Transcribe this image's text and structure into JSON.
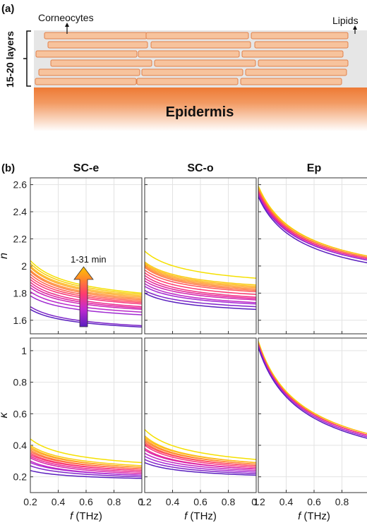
{
  "panel_a": {
    "label": "(a)",
    "corneocytes_label": "Corneocytes",
    "lipids_label": "Lipids",
    "layers_label": "15-20 layers",
    "epidermis_label": "Epidermis"
  },
  "panel_b": {
    "label": "(b)",
    "arrow_label": "1-31 min"
  },
  "colors": {
    "corneocyte_fill": "#f7c39d",
    "corneocyte_stroke": "#e0804a",
    "lipid_bg": "#e6e6e6",
    "epidermis_top": "#ee7a35",
    "colormap": [
      "#5a1fbf",
      "#b12bd6",
      "#e01fa0",
      "#ff3a6e",
      "#ff7a3a",
      "#ffb020",
      "#f5e000"
    ]
  },
  "chart_data": [
    {
      "type": "line",
      "title": "SC-e",
      "ylabel": "n",
      "xlabel": "",
      "xlim": [
        0.2,
        1
      ],
      "ylim": [
        1.5,
        2.65
      ],
      "xticks": [
        "0.2",
        "0.4",
        "0.6",
        "0.8",
        "1"
      ],
      "yticks": [
        "1.6",
        "1.8",
        "2",
        "2.2",
        "2.4",
        "2.6"
      ],
      "grid": true,
      "curves": [
        {
          "start": 2.04,
          "end": 1.8
        },
        {
          "start": 2.02,
          "end": 1.79
        },
        {
          "start": 2.0,
          "end": 1.78
        },
        {
          "start": 1.99,
          "end": 1.77
        },
        {
          "start": 1.97,
          "end": 1.76
        },
        {
          "start": 1.96,
          "end": 1.75
        },
        {
          "start": 1.94,
          "end": 1.74
        },
        {
          "start": 1.92,
          "end": 1.73
        },
        {
          "start": 1.9,
          "end": 1.72
        },
        {
          "start": 1.88,
          "end": 1.7
        },
        {
          "start": 1.86,
          "end": 1.69
        },
        {
          "start": 1.84,
          "end": 1.68
        },
        {
          "start": 1.81,
          "end": 1.66
        },
        {
          "start": 1.78,
          "end": 1.64
        },
        {
          "start": 1.7,
          "end": 1.56
        },
        {
          "start": 1.68,
          "end": 1.55
        }
      ]
    },
    {
      "type": "line",
      "title": "SC-o",
      "ylabel": "",
      "xlabel": "",
      "xlim": [
        0.2,
        1
      ],
      "ylim": [
        1.5,
        2.65
      ],
      "xticks": [
        "0.2",
        "0.4",
        "0.6",
        "0.8",
        "1"
      ],
      "yticks": [
        "1.6",
        "1.8",
        "2",
        "2.2",
        "2.4",
        "2.6"
      ],
      "grid": true,
      "curves": [
        {
          "start": 2.11,
          "end": 1.91
        },
        {
          "start": 2.03,
          "end": 1.86
        },
        {
          "start": 2.02,
          "end": 1.85
        },
        {
          "start": 2.01,
          "end": 1.84
        },
        {
          "start": 2.0,
          "end": 1.83
        },
        {
          "start": 1.99,
          "end": 1.82
        },
        {
          "start": 1.97,
          "end": 1.81
        },
        {
          "start": 1.95,
          "end": 1.79
        },
        {
          "start": 1.93,
          "end": 1.77
        },
        {
          "start": 1.91,
          "end": 1.76
        },
        {
          "start": 1.89,
          "end": 1.75
        },
        {
          "start": 1.87,
          "end": 1.73
        },
        {
          "start": 1.85,
          "end": 1.72
        },
        {
          "start": 1.82,
          "end": 1.7
        },
        {
          "start": 1.8,
          "end": 1.68
        }
      ]
    },
    {
      "type": "line",
      "title": "Ep",
      "ylabel": "",
      "xlabel": "",
      "xlim": [
        0.2,
        1
      ],
      "ylim": [
        1.5,
        2.65
      ],
      "xticks": [
        "0.2",
        "0.4",
        "0.6",
        "0.8",
        "1"
      ],
      "yticks": [
        "1.6",
        "1.8",
        "2",
        "2.2",
        "2.4",
        "2.6"
      ],
      "grid": true,
      "curves": [
        {
          "start": 2.59,
          "end": 2.07
        },
        {
          "start": 2.58,
          "end": 2.07
        },
        {
          "start": 2.57,
          "end": 2.06
        },
        {
          "start": 2.56,
          "end": 2.06
        },
        {
          "start": 2.55,
          "end": 2.05
        },
        {
          "start": 2.54,
          "end": 2.05
        },
        {
          "start": 2.53,
          "end": 2.04
        },
        {
          "start": 2.52,
          "end": 2.04
        },
        {
          "start": 2.51,
          "end": 2.02
        }
      ]
    },
    {
      "type": "line",
      "title": "",
      "ylabel": "κ",
      "xlabel": "f (THz)",
      "xlim": [
        0.2,
        1
      ],
      "ylim": [
        0.1,
        1.08
      ],
      "xticks": [
        "0.2",
        "0.4",
        "0.6",
        "0.8",
        "1"
      ],
      "yticks": [
        "0.2",
        "0.4",
        "0.6",
        "0.8",
        "1"
      ],
      "grid": true,
      "curves": [
        {
          "start": 0.44,
          "end": 0.29
        },
        {
          "start": 0.4,
          "end": 0.27
        },
        {
          "start": 0.39,
          "end": 0.26
        },
        {
          "start": 0.38,
          "end": 0.26
        },
        {
          "start": 0.37,
          "end": 0.25
        },
        {
          "start": 0.36,
          "end": 0.25
        },
        {
          "start": 0.35,
          "end": 0.24
        },
        {
          "start": 0.34,
          "end": 0.24
        },
        {
          "start": 0.33,
          "end": 0.23
        },
        {
          "start": 0.32,
          "end": 0.22
        },
        {
          "start": 0.3,
          "end": 0.21
        },
        {
          "start": 0.29,
          "end": 0.21
        },
        {
          "start": 0.27,
          "end": 0.2
        },
        {
          "start": 0.24,
          "end": 0.19
        }
      ]
    },
    {
      "type": "line",
      "title": "",
      "ylabel": "",
      "xlabel": "f (THz)",
      "xlim": [
        0.2,
        1
      ],
      "ylim": [
        0.1,
        1.08
      ],
      "xticks": [
        "0.2",
        "0.4",
        "0.6",
        "0.8",
        "1"
      ],
      "yticks": [
        "0.2",
        "0.4",
        "0.6",
        "0.8",
        "1"
      ],
      "grid": true,
      "curves": [
        {
          "start": 0.5,
          "end": 0.31
        },
        {
          "start": 0.46,
          "end": 0.29
        },
        {
          "start": 0.45,
          "end": 0.29
        },
        {
          "start": 0.44,
          "end": 0.28
        },
        {
          "start": 0.43,
          "end": 0.28
        },
        {
          "start": 0.42,
          "end": 0.27
        },
        {
          "start": 0.41,
          "end": 0.27
        },
        {
          "start": 0.4,
          "end": 0.26
        },
        {
          "start": 0.38,
          "end": 0.25
        },
        {
          "start": 0.37,
          "end": 0.25
        },
        {
          "start": 0.35,
          "end": 0.24
        },
        {
          "start": 0.33,
          "end": 0.23
        },
        {
          "start": 0.31,
          "end": 0.22
        },
        {
          "start": 0.29,
          "end": 0.21
        }
      ]
    },
    {
      "type": "line",
      "title": "",
      "ylabel": "",
      "xlabel": "f (THz)",
      "xlim": [
        0.2,
        1
      ],
      "ylim": [
        0.1,
        1.08
      ],
      "xticks": [
        "0.2",
        "0.4",
        "0.6",
        "0.8",
        "1"
      ],
      "yticks": [
        "0.2",
        "0.4",
        "0.6",
        "0.8",
        "1"
      ],
      "grid": true,
      "curves": [
        {
          "start": 1.06,
          "end": 0.47
        },
        {
          "start": 1.05,
          "end": 0.47
        },
        {
          "start": 1.05,
          "end": 0.46
        },
        {
          "start": 1.04,
          "end": 0.46
        },
        {
          "start": 1.04,
          "end": 0.46
        },
        {
          "start": 1.03,
          "end": 0.45
        },
        {
          "start": 1.03,
          "end": 0.45
        },
        {
          "start": 1.02,
          "end": 0.44
        }
      ]
    }
  ]
}
